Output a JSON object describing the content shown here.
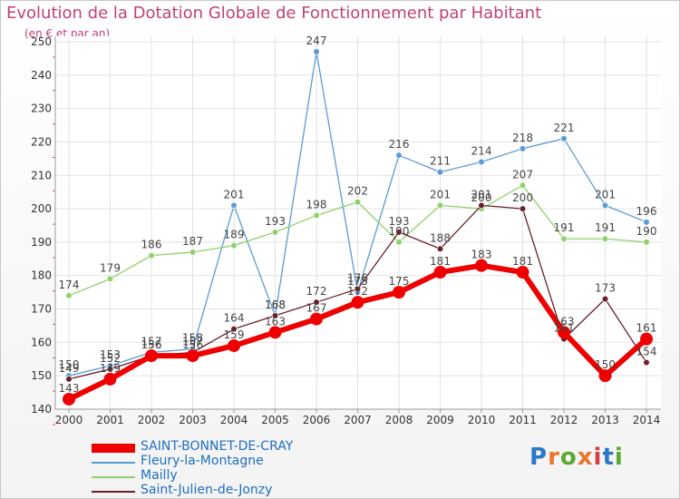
{
  "title": "Evolution de la Dotation Globale de Fonctionnement par Habitant",
  "subtitle": "(en € et par an)",
  "logo": {
    "text": "Proxiti",
    "colors": [
      "#2b78c5",
      "#e8762b",
      "#5aa832",
      "#e8762b",
      "#d23f3f",
      "#2b78c5",
      "#5aa832"
    ]
  },
  "chart_data": {
    "type": "line",
    "title": "Evolution de la Dotation Globale de Fonctionnement par Habitant",
    "subtitle": "(en € et par an)",
    "xlabel": "",
    "ylabel": "",
    "x": [
      "2000",
      "2001",
      "2002",
      "2003",
      "2004",
      "2005",
      "2006",
      "2007",
      "2008",
      "2009",
      "2010",
      "2011",
      "2012",
      "2013",
      "2014"
    ],
    "ylim": [
      140,
      250
    ],
    "yticks": [
      140,
      150,
      160,
      170,
      180,
      190,
      200,
      210,
      220,
      230,
      240,
      250
    ],
    "grid": true,
    "legend_position": "bottom-left",
    "series": [
      {
        "name": "SAINT-BONNET-DE-CRAY",
        "color": "#ee0000",
        "values": [
          143,
          149,
          156,
          156,
          159,
          163,
          167,
          172,
          175,
          181,
          183,
          181,
          163,
          150,
          161
        ]
      },
      {
        "name": "Fleury-la-Montagne",
        "color": "#5b9bd5",
        "values": [
          150,
          153,
          157,
          158,
          201,
          168,
          247,
          175,
          216,
          211,
          214,
          218,
          221,
          201,
          196
        ]
      },
      {
        "name": "Mailly",
        "color": "#8fd16a",
        "values": [
          174,
          179,
          186,
          187,
          189,
          193,
          198,
          202,
          190,
          201,
          200,
          207,
          191,
          191,
          190
        ]
      },
      {
        "name": "Saint-Julien-de-Jonzy",
        "color": "#6b1f2a",
        "values": [
          149,
          152,
          156,
          157,
          164,
          168,
          172,
          176,
          193,
          188,
          201,
          200,
          161,
          173,
          154
        ]
      }
    ]
  }
}
